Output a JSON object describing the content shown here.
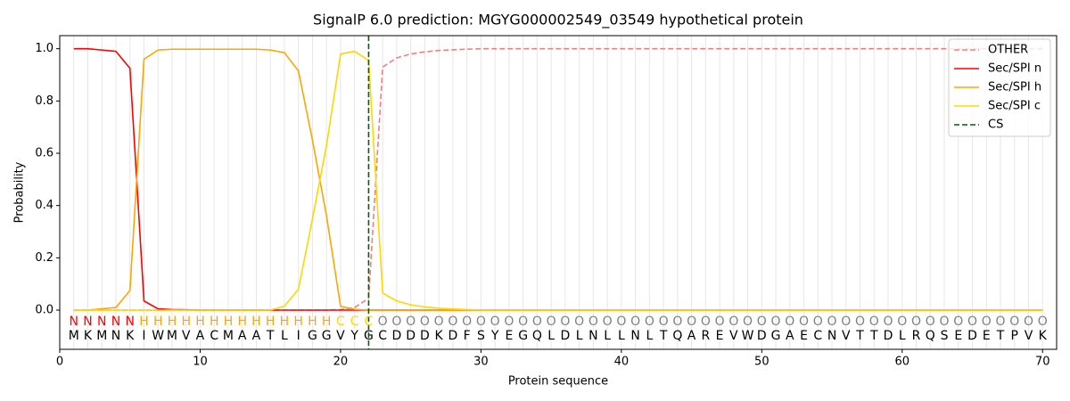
{
  "chart_data": {
    "type": "line",
    "title": "SignalP 6.0 prediction: MGYG000002549_03549 hypothetical protein",
    "xlabel": "Protein sequence",
    "ylabel": "Probability",
    "xlim": [
      0,
      71
    ],
    "ylim": [
      -0.15,
      1.05
    ],
    "xticks": [
      0,
      10,
      20,
      30,
      40,
      50,
      60,
      70
    ],
    "yticks": [
      {
        "value": 0,
        "label": "0.0"
      },
      {
        "value": 0.2,
        "label": "0.2"
      },
      {
        "value": 0.4,
        "label": "0.4"
      },
      {
        "value": 0.6,
        "label": "0.6"
      },
      {
        "value": 0.8,
        "label": "0.8"
      },
      {
        "value": 1,
        "label": "1.0"
      }
    ],
    "position_grid": true,
    "legend": "upper right",
    "x": [
      1,
      2,
      3,
      4,
      5,
      6,
      7,
      8,
      9,
      10,
      11,
      12,
      13,
      14,
      15,
      16,
      17,
      18,
      19,
      20,
      21,
      22,
      23,
      24,
      25,
      26,
      27,
      28,
      29,
      30,
      31,
      32,
      33,
      34,
      35,
      36,
      37,
      38,
      39,
      40,
      41,
      42,
      43,
      44,
      45,
      46,
      47,
      48,
      49,
      50,
      51,
      52,
      53,
      54,
      55,
      56,
      57,
      58,
      59,
      60,
      61,
      62,
      63,
      64,
      65,
      66,
      67,
      68,
      69,
      70
    ],
    "sequence": [
      "M",
      "K",
      "M",
      "N",
      "K",
      "I",
      "W",
      "M",
      "V",
      "A",
      "C",
      "M",
      "A",
      "A",
      "T",
      "L",
      "I",
      "G",
      "G",
      "V",
      "Y",
      "G",
      "C",
      "D",
      "D",
      "D",
      "K",
      "D",
      "F",
      "S",
      "Y",
      "E",
      "G",
      "Q",
      "L",
      "D",
      "L",
      "N",
      "L",
      "L",
      "N",
      "L",
      "T",
      "Q",
      "A",
      "R",
      "E",
      "V",
      "W",
      "D",
      "G",
      "A",
      "E",
      "C",
      "N",
      "V",
      "T",
      "T",
      "D",
      "L",
      "R",
      "Q",
      "S",
      "E",
      "D",
      "E",
      "T",
      "P",
      "V",
      "K"
    ],
    "regions": [
      "N",
      "N",
      "N",
      "N",
      "N",
      "H",
      "H",
      "H",
      "H",
      "H",
      "H",
      "H",
      "H",
      "H",
      "H",
      "H",
      "H",
      "H",
      "H",
      "C",
      "C",
      "C",
      "O",
      "O",
      "O",
      "O",
      "O",
      "O",
      "O",
      "O",
      "O",
      "O",
      "O",
      "O",
      "O",
      "O",
      "O",
      "O",
      "O",
      "O",
      "O",
      "O",
      "O",
      "O",
      "O",
      "O",
      "O",
      "O",
      "O",
      "O",
      "O",
      "O",
      "O",
      "O",
      "O",
      "O",
      "O",
      "O",
      "O",
      "O",
      "O",
      "O",
      "O",
      "O",
      "O",
      "O",
      "O",
      "O",
      "O",
      "O"
    ],
    "region_colors": {
      "N": "#ff0000",
      "H": "#ffa500",
      "C": "#ffd700",
      "O": "#808080"
    },
    "series": [
      {
        "name": "OTHER",
        "color": "#f08080",
        "dashed": true,
        "values": [
          0,
          0,
          0,
          0,
          0,
          0,
          0,
          0,
          0,
          0,
          0,
          0,
          0,
          0,
          0,
          0,
          0,
          0,
          0,
          0.002,
          0.01,
          0.045,
          0.93,
          0.965,
          0.98,
          0.988,
          0.993,
          0.996,
          0.998,
          1,
          1,
          1,
          1,
          1,
          1,
          1,
          1,
          1,
          1,
          1,
          1,
          1,
          1,
          1,
          1,
          1,
          1,
          1,
          1,
          1,
          1,
          1,
          1,
          1,
          1,
          1,
          1,
          1,
          1,
          1,
          1,
          1,
          1,
          1,
          1,
          1,
          1,
          1,
          1,
          1
        ]
      },
      {
        "name": "Sec/SPI n",
        "color": "#ff0000",
        "dashed": false,
        "values": [
          1,
          1,
          0.995,
          0.99,
          0.925,
          0.035,
          0.005,
          0.002,
          0.001,
          0,
          0,
          0,
          0,
          0,
          0,
          0,
          0,
          0,
          0,
          0,
          0,
          0,
          0,
          0,
          0,
          0,
          0,
          0,
          0,
          0,
          0,
          0,
          0,
          0,
          0,
          0,
          0,
          0,
          0,
          0,
          0,
          0,
          0,
          0,
          0,
          0,
          0,
          0,
          0,
          0,
          0,
          0,
          0,
          0,
          0,
          0,
          0,
          0,
          0,
          0,
          0,
          0,
          0,
          0,
          0,
          0,
          0,
          0,
          0,
          0
        ]
      },
      {
        "name": "Sec/SPI h",
        "color": "#ffa500",
        "dashed": false,
        "values": [
          0,
          0,
          0.005,
          0.01,
          0.075,
          0.96,
          0.995,
          0.998,
          0.998,
          0.998,
          0.998,
          0.998,
          0.998,
          0.998,
          0.995,
          0.985,
          0.915,
          0.65,
          0.36,
          0.015,
          0.003,
          0,
          0,
          0,
          0,
          0,
          0,
          0,
          0,
          0,
          0,
          0,
          0,
          0,
          0,
          0,
          0,
          0,
          0,
          0,
          0,
          0,
          0,
          0,
          0,
          0,
          0,
          0,
          0,
          0,
          0,
          0,
          0,
          0,
          0,
          0,
          0,
          0,
          0,
          0,
          0,
          0,
          0,
          0,
          0,
          0,
          0,
          0,
          0,
          0
        ]
      },
      {
        "name": "Sec/SPI c",
        "color": "#ffd700",
        "dashed": false,
        "values": [
          0,
          0,
          0,
          0,
          0,
          0,
          0,
          0,
          0,
          0,
          0,
          0,
          0,
          0,
          0,
          0.015,
          0.08,
          0.35,
          0.63,
          0.98,
          0.99,
          0.955,
          0.065,
          0.035,
          0.02,
          0.012,
          0.007,
          0.004,
          0.002,
          0,
          0,
          0,
          0,
          0,
          0,
          0,
          0,
          0,
          0,
          0,
          0,
          0,
          0,
          0,
          0,
          0,
          0,
          0,
          0,
          0,
          0,
          0,
          0,
          0,
          0,
          0,
          0,
          0,
          0,
          0,
          0,
          0,
          0,
          0,
          0,
          0,
          0,
          0,
          0,
          0
        ]
      }
    ],
    "cs": {
      "name": "CS",
      "color": "#006400",
      "x": 22
    }
  }
}
